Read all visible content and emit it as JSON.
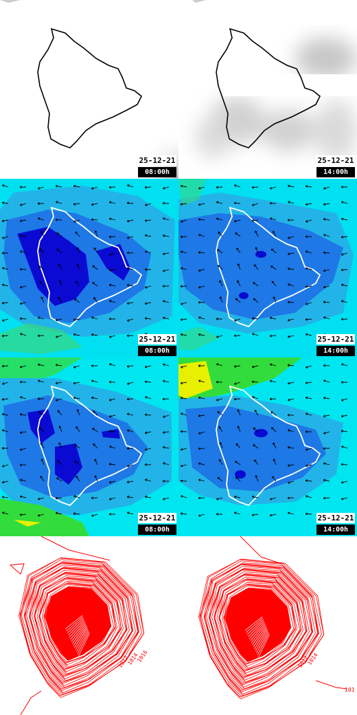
{
  "panels": [
    {
      "kind": "cloud",
      "date": "25-12-21",
      "time": "08:00h"
    },
    {
      "kind": "cloud",
      "date": "25-12-21",
      "time": "14:00h"
    },
    {
      "kind": "wind",
      "date": "25-12-21",
      "time": "08:00h"
    },
    {
      "kind": "wind",
      "date": "25-12-21",
      "time": "14:00h"
    },
    {
      "kind": "gust",
      "date": "25-12-21",
      "time": "08:00h"
    },
    {
      "kind": "gust",
      "date": "25-12-21",
      "time": "14:00h"
    },
    {
      "kind": "pressure",
      "date": "",
      "time": ""
    },
    {
      "kind": "pressure",
      "date": "",
      "time": ""
    }
  ],
  "pressure_labels": [
    "1012",
    "1014",
    "1016",
    "101"
  ],
  "colors": {
    "coast_dark": "#000000",
    "coast_light": "#ffffff",
    "wind_bg": "#22b4e8",
    "wind_mid": "#1e78e6",
    "wind_dark": "#0a0ad2",
    "wind_cyan": "#00e6f0",
    "wind_green": "#37d77d",
    "gust_green": "#32dc3c",
    "gust_yellow": "#e6f000",
    "isobar": "#ff0000"
  }
}
